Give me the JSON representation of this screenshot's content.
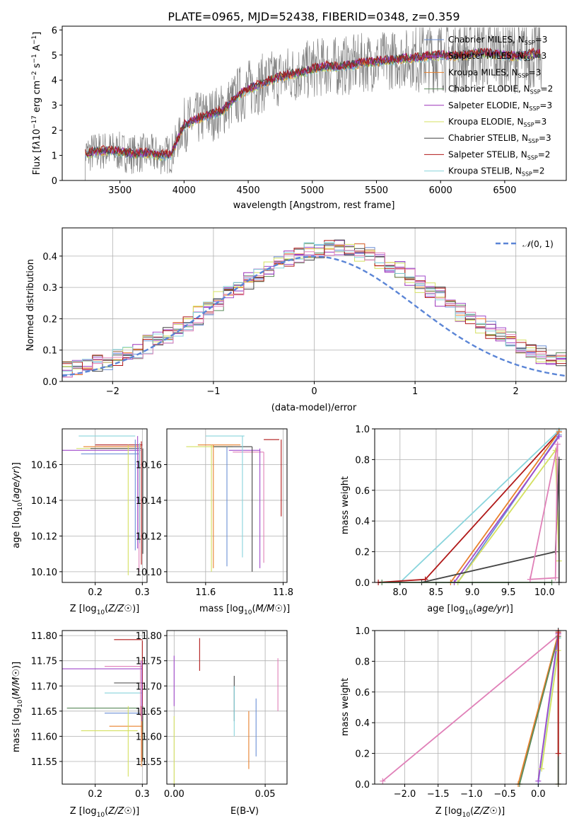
{
  "palette": {
    "cm": "#6b8fd6",
    "sm": "#a04acb",
    "km": "#e8802c",
    "ce": "#5a8a5a",
    "se": "#9b30b8",
    "ke": "#d4e060",
    "cs": "#444444",
    "ss": "#b01818",
    "ks": "#88d4dc",
    "pink": "#e080b8",
    "gray": "#808080",
    "norm": "#5b85d6"
  },
  "chart_data": [
    {
      "id": "spectrum",
      "type": "line",
      "title": "PLATE=0965, MJD=52438, FIBERID=0348, z=0.359",
      "xlabel": "wavelength [Angstrom, rest frame]",
      "ylabel": "Flux [f_λ 10^-17 erg cm^-2 s^-1 A^-1]",
      "xlim": [
        3050,
        6980
      ],
      "ylim": [
        0,
        6.15
      ],
      "xticks": [
        3500,
        4000,
        4500,
        5000,
        5500,
        6000,
        6500
      ],
      "yticks": [
        0,
        1,
        2,
        3,
        4,
        5,
        6
      ],
      "legend_position": "upper-right",
      "legend": [
        "Chabrier MILES, N_SSP=3",
        "Salpeter MILES, N_SSP=3",
        "Kroupa MILES, N_SSP=3",
        "Chabrier ELODIE, N_SSP=2",
        "Salpeter ELODIE, N_SSP=3",
        "Kroupa ELODIE, N_SSP=3",
        "Chabrier STELIB, N_SSP=3",
        "Salpeter STELIB, N_SSP=2",
        "Kroupa STELIB, N_SSP=2"
      ],
      "model_curve": {
        "x": [
          3200,
          3300,
          3400,
          3500,
          3600,
          3700,
          3800,
          3900,
          4000,
          4100,
          4200,
          4300,
          4400,
          4500,
          4600,
          4700,
          4800,
          4900,
          5000,
          5100,
          5200,
          5300,
          5400,
          5500,
          5600,
          5700,
          5800,
          5900,
          6000,
          6100,
          6200,
          6300,
          6400,
          6500,
          6600,
          6700,
          6800
        ],
        "y": [
          1.0,
          1.15,
          1.2,
          1.15,
          1.05,
          1.1,
          1.0,
          1.05,
          2.2,
          2.45,
          2.6,
          2.8,
          3.3,
          3.65,
          3.85,
          4.05,
          4.2,
          4.3,
          4.45,
          4.55,
          4.55,
          4.6,
          4.7,
          4.75,
          4.8,
          4.85,
          4.9,
          4.95,
          5.0,
          4.95,
          5.0,
          5.1,
          5.05,
          5.0,
          4.95,
          5.05,
          5.05
        ]
      }
    },
    {
      "id": "residuals",
      "type": "histogram",
      "xlabel": "(data-model)/error",
      "ylabel": "Normed distribution",
      "xlim": [
        -2.5,
        2.5
      ],
      "ylim": [
        0,
        0.49
      ],
      "xticks": [
        -2,
        -1,
        0,
        1,
        2
      ],
      "yticks": [
        0.0,
        0.1,
        0.2,
        0.3,
        0.4
      ],
      "grid": true,
      "legend_position": "upper-right",
      "legend": [
        "N(0,1)"
      ]
    },
    {
      "id": "age-vs-Z",
      "type": "errorbar",
      "xlabel": "Z [log10(Z/Z☉)]",
      "ylabel": "age  [log10(age/yr)]",
      "xlim": [
        0.13,
        0.31
      ],
      "ylim": [
        10.094,
        10.18
      ],
      "xticks": [
        0.2,
        0.3
      ],
      "yticks": [
        10.1,
        10.12,
        10.14,
        10.16
      ],
      "grid": true
    },
    {
      "id": "age-vs-mass",
      "type": "errorbar",
      "xlabel": "mass [log10(M/M☉)]",
      "ylabel": "",
      "xlim": [
        11.5,
        11.81
      ],
      "ylim": [
        10.094,
        10.18
      ],
      "xticks": [
        11.6,
        11.8
      ],
      "yticks": [
        10.1,
        10.12,
        10.14,
        10.16
      ],
      "grid": true
    },
    {
      "id": "massweight-vs-age",
      "type": "line",
      "xlabel": "age  [log10(age/yr)]",
      "ylabel": "mass weight",
      "xlim": [
        7.65,
        10.3
      ],
      "ylim": [
        0,
        1.0
      ],
      "xticks": [
        8.0,
        8.5,
        9.0,
        9.5,
        10.0
      ],
      "yticks": [
        0.0,
        0.2,
        0.4,
        0.6,
        0.8,
        1.0
      ],
      "grid": true
    },
    {
      "id": "mass-vs-Z",
      "type": "errorbar",
      "xlabel": "Z [log10(Z/Z☉)]",
      "ylabel": "mass [log10(M/M☉)]",
      "xlim": [
        0.13,
        0.31
      ],
      "ylim": [
        11.505,
        11.81
      ],
      "xticks": [
        0.2,
        0.3
      ],
      "yticks": [
        11.55,
        11.6,
        11.65,
        11.7,
        11.75,
        11.8
      ],
      "grid": true
    },
    {
      "id": "mass-vs-EBV",
      "type": "errorbar",
      "xlabel": "E(B-V)",
      "ylabel": "",
      "xlim": [
        -0.004,
        0.062
      ],
      "ylim": [
        11.505,
        11.81
      ],
      "xticks": [
        0.0,
        0.05
      ],
      "yticks": [
        11.55,
        11.6,
        11.65,
        11.7,
        11.75,
        11.8
      ],
      "grid": true
    },
    {
      "id": "massweight-vs-Z",
      "type": "line",
      "xlabel": "Z [log10(Z/Z☉)]",
      "ylabel": "mass weight",
      "xlim": [
        -2.45,
        0.42
      ],
      "ylim": [
        0,
        1.0
      ],
      "xticks": [
        -2.0,
        -1.5,
        -1.0,
        -0.5,
        0.0
      ],
      "yticks": [
        0.0,
        0.2,
        0.4,
        0.6,
        0.8,
        1.0
      ],
      "grid": true
    }
  ]
}
